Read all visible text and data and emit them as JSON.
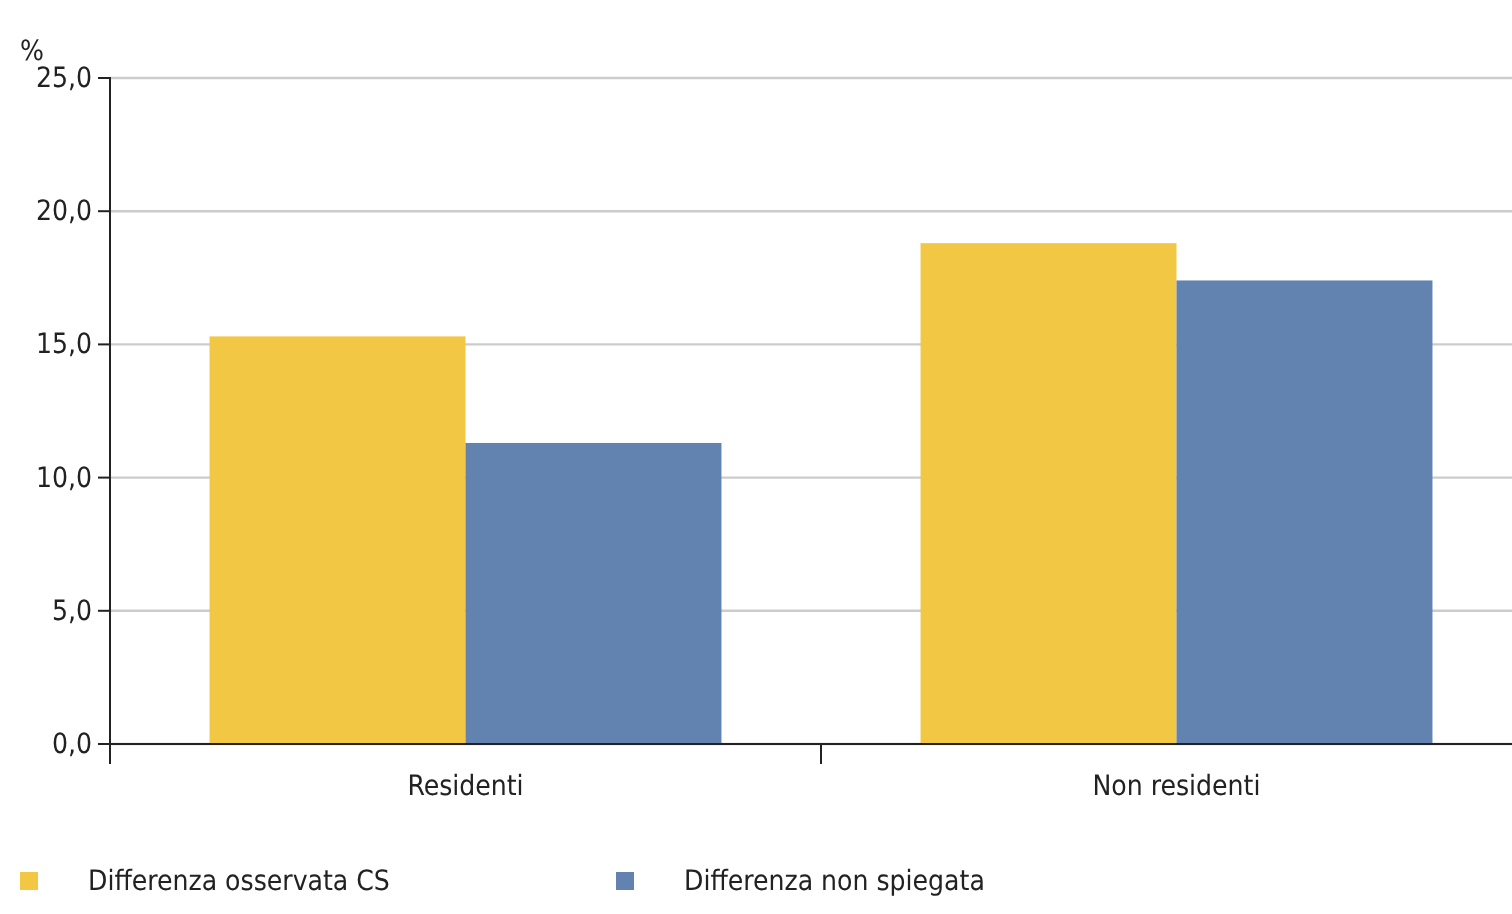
{
  "chart_data": {
    "type": "bar",
    "ylabel": "%",
    "categories": [
      "Residenti",
      "Non residenti"
    ],
    "series": [
      {
        "name": "Differenza osservata CS",
        "color": "#f2c744",
        "values": [
          15.3,
          18.8
        ]
      },
      {
        "name": "Differenza non spiegata",
        "color": "#6283b0",
        "values": [
          11.3,
          17.4
        ]
      }
    ],
    "ylim": [
      0,
      25
    ],
    "yticks": [
      {
        "value": 0,
        "label": "0,0"
      },
      {
        "value": 5,
        "label": "5,0"
      },
      {
        "value": 10,
        "label": "10,0"
      },
      {
        "value": 15,
        "label": "15,0"
      },
      {
        "value": 20,
        "label": "20,0"
      },
      {
        "value": 25,
        "label": "25,0"
      }
    ],
    "grid": "y",
    "legend": "bottom left"
  }
}
